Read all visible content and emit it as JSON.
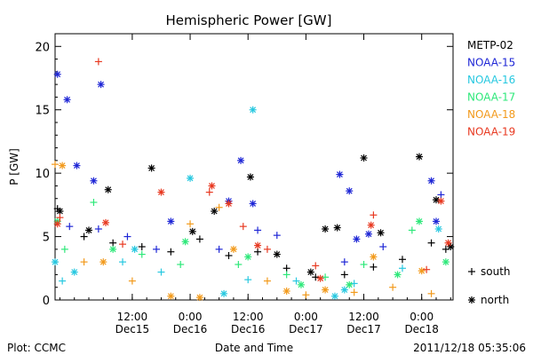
{
  "chart_data": {
    "type": "scatter",
    "title": "Hemispheric Power [GW]",
    "ylabel": "P [GW]",
    "xlabel": "Date and Time",
    "ylim": [
      0,
      21
    ],
    "xlim": [
      "2011-12-14T20:00",
      "2011-12-18T06:30"
    ],
    "yticks": [
      0,
      5,
      10,
      15,
      20
    ],
    "xticks": [
      {
        "t": "2011-12-15T12:00",
        "line1": "12:00",
        "line2": "Dec15"
      },
      {
        "t": "2011-12-16T00:00",
        "line1": "0:00",
        "line2": "Dec16"
      },
      {
        "t": "2011-12-16T12:00",
        "line1": "12:00",
        "line2": "Dec16"
      },
      {
        "t": "2011-12-17T00:00",
        "line1": "0:00",
        "line2": "Dec17"
      },
      {
        "t": "2011-12-17T12:00",
        "line1": "12:00",
        "line2": "Dec17"
      },
      {
        "t": "2011-12-18T00:00",
        "line1": "0:00",
        "line2": "Dec18"
      }
    ],
    "grid": false,
    "legend_placement": "right",
    "markers": {
      "south": "+",
      "north": "*",
      "south_label": "south",
      "north_label": "north"
    },
    "series": [
      {
        "name": "METP-02",
        "color": "#000000",
        "south": [
          [
            "2011-12-14T20:30",
            7.2
          ],
          [
            "2011-12-15T02:00",
            5.0
          ],
          [
            "2011-12-15T08:00",
            4.5
          ],
          [
            "2011-12-15T14:00",
            4.2
          ],
          [
            "2011-12-15T20:00",
            3.8
          ],
          [
            "2011-12-16T02:00",
            4.8
          ],
          [
            "2011-12-16T08:00",
            3.5
          ],
          [
            "2011-12-16T14:00",
            3.8
          ],
          [
            "2011-12-16T20:00",
            2.5
          ],
          [
            "2011-12-17T02:00",
            1.8
          ],
          [
            "2011-12-17T08:00",
            2.0
          ],
          [
            "2011-12-17T14:00",
            2.6
          ],
          [
            "2011-12-17T20:00",
            3.2
          ],
          [
            "2011-12-18T02:00",
            4.5
          ],
          [
            "2011-12-18T05:00",
            4.0
          ]
        ],
        "north": [
          [
            "2011-12-14T21:00",
            7.0
          ],
          [
            "2011-12-15T03:00",
            5.5
          ],
          [
            "2011-12-15T07:00",
            8.7
          ],
          [
            "2011-12-15T16:00",
            10.4
          ],
          [
            "2011-12-16T00:30",
            5.4
          ],
          [
            "2011-12-16T05:00",
            7.0
          ],
          [
            "2011-12-16T12:30",
            9.7
          ],
          [
            "2011-12-16T18:00",
            3.6
          ],
          [
            "2011-12-17T01:00",
            2.2
          ],
          [
            "2011-12-17T04:00",
            5.6
          ],
          [
            "2011-12-17T06:30",
            5.7
          ],
          [
            "2011-12-17T12:00",
            11.2
          ],
          [
            "2011-12-17T15:30",
            5.3
          ],
          [
            "2011-12-17T23:30",
            11.3
          ],
          [
            "2011-12-18T03:00",
            7.9
          ],
          [
            "2011-12-18T06:00",
            4.2
          ]
        ]
      },
      {
        "name": "NOAA-15",
        "color": "#1f27d6",
        "south": [
          [
            "2011-12-14T23:00",
            5.8
          ],
          [
            "2011-12-15T05:00",
            5.6
          ],
          [
            "2011-12-15T11:00",
            5.0
          ],
          [
            "2011-12-15T17:00",
            4.0
          ],
          [
            "2011-12-16T06:00",
            4.0
          ],
          [
            "2011-12-16T14:00",
            5.5
          ],
          [
            "2011-12-16T18:00",
            5.1
          ],
          [
            "2011-12-17T08:00",
            3.0
          ],
          [
            "2011-12-17T16:00",
            4.2
          ],
          [
            "2011-12-18T04:00",
            8.3
          ]
        ],
        "north": [
          [
            "2011-12-14T20:30",
            17.8
          ],
          [
            "2011-12-14T22:30",
            15.8
          ],
          [
            "2011-12-15T00:30",
            10.6
          ],
          [
            "2011-12-15T04:00",
            9.4
          ],
          [
            "2011-12-15T05:30",
            17.0
          ],
          [
            "2011-12-15T20:00",
            6.2
          ],
          [
            "2011-12-16T08:00",
            7.8
          ],
          [
            "2011-12-16T10:30",
            11.0
          ],
          [
            "2011-12-16T13:00",
            7.6
          ],
          [
            "2011-12-17T07:00",
            9.9
          ],
          [
            "2011-12-17T09:00",
            8.6
          ],
          [
            "2011-12-17T10:30",
            4.8
          ],
          [
            "2011-12-17T13:00",
            5.2
          ],
          [
            "2011-12-18T02:00",
            9.4
          ],
          [
            "2011-12-18T03:00",
            6.2
          ]
        ]
      },
      {
        "name": "NOAA-16",
        "color": "#27c8e0",
        "south": [
          [
            "2011-12-14T21:30",
            1.5
          ],
          [
            "2011-12-15T10:00",
            3.0
          ],
          [
            "2011-12-15T18:00",
            2.2
          ],
          [
            "2011-12-16T12:00",
            1.6
          ],
          [
            "2011-12-16T22:00",
            1.5
          ],
          [
            "2011-12-17T10:00",
            1.3
          ],
          [
            "2011-12-17T20:00",
            2.5
          ]
        ],
        "north": [
          [
            "2011-12-14T20:00",
            3.0
          ],
          [
            "2011-12-15T00:00",
            2.2
          ],
          [
            "2011-12-15T12:30",
            4.0
          ],
          [
            "2011-12-16T00:00",
            9.6
          ],
          [
            "2011-12-16T07:00",
            0.5
          ],
          [
            "2011-12-16T13:00",
            15.0
          ],
          [
            "2011-12-17T06:00",
            0.3
          ],
          [
            "2011-12-17T08:00",
            0.8
          ],
          [
            "2011-12-18T03:30",
            5.6
          ]
        ]
      },
      {
        "name": "NOAA-17",
        "color": "#2ee87a",
        "south": [
          [
            "2011-12-14T22:00",
            4.0
          ],
          [
            "2011-12-15T04:00",
            7.7
          ],
          [
            "2011-12-15T14:00",
            3.6
          ],
          [
            "2011-12-15T22:00",
            2.8
          ],
          [
            "2011-12-16T10:00",
            2.8
          ],
          [
            "2011-12-16T20:00",
            2.0
          ],
          [
            "2011-12-17T04:00",
            1.8
          ],
          [
            "2011-12-17T12:00",
            2.8
          ],
          [
            "2011-12-17T22:00",
            5.5
          ]
        ],
        "north": [
          [
            "2011-12-14T20:30",
            6.2
          ],
          [
            "2011-12-15T08:00",
            4.0
          ],
          [
            "2011-12-15T23:00",
            4.6
          ],
          [
            "2011-12-16T12:00",
            3.4
          ],
          [
            "2011-12-16T23:00",
            1.2
          ],
          [
            "2011-12-17T09:00",
            1.2
          ],
          [
            "2011-12-17T19:00",
            2.0
          ],
          [
            "2011-12-17T23:30",
            6.2
          ],
          [
            "2011-12-18T05:00",
            3.0
          ]
        ]
      },
      {
        "name": "NOAA-18",
        "color": "#f29a1c",
        "south": [
          [
            "2011-12-14T20:00",
            10.7
          ],
          [
            "2011-12-15T02:00",
            3.0
          ],
          [
            "2011-12-15T12:00",
            1.5
          ],
          [
            "2011-12-16T00:00",
            6.0
          ],
          [
            "2011-12-16T06:00",
            7.3
          ],
          [
            "2011-12-16T16:00",
            1.5
          ],
          [
            "2011-12-17T00:00",
            0.4
          ],
          [
            "2011-12-17T10:00",
            0.6
          ],
          [
            "2011-12-17T18:00",
            1.0
          ],
          [
            "2011-12-18T02:00",
            0.5
          ]
        ],
        "north": [
          [
            "2011-12-14T21:30",
            10.6
          ],
          [
            "2011-12-15T06:00",
            3.0
          ],
          [
            "2011-12-15T20:00",
            0.3
          ],
          [
            "2011-12-16T02:00",
            0.2
          ],
          [
            "2011-12-16T09:00",
            4.0
          ],
          [
            "2011-12-16T20:00",
            0.7
          ],
          [
            "2011-12-17T04:00",
            0.8
          ],
          [
            "2011-12-17T14:00",
            3.4
          ],
          [
            "2011-12-18T00:00",
            2.3
          ]
        ]
      },
      {
        "name": "NOAA-19",
        "color": "#e83a22",
        "south": [
          [
            "2011-12-14T21:00",
            6.5
          ],
          [
            "2011-12-15T05:00",
            18.8
          ],
          [
            "2011-12-15T10:00",
            4.4
          ],
          [
            "2011-12-16T04:00",
            8.5
          ],
          [
            "2011-12-16T11:00",
            5.8
          ],
          [
            "2011-12-16T16:00",
            4.0
          ],
          [
            "2011-12-17T02:00",
            2.7
          ],
          [
            "2011-12-17T14:00",
            6.7
          ],
          [
            "2011-12-18T01:00",
            2.4
          ]
        ],
        "north": [
          [
            "2011-12-14T20:30",
            6.0
          ],
          [
            "2011-12-15T06:30",
            6.1
          ],
          [
            "2011-12-15T18:00",
            8.5
          ],
          [
            "2011-12-16T04:30",
            9.0
          ],
          [
            "2011-12-16T08:00",
            7.6
          ],
          [
            "2011-12-16T14:00",
            4.3
          ],
          [
            "2011-12-17T03:00",
            1.7
          ],
          [
            "2011-12-17T13:30",
            5.9
          ],
          [
            "2011-12-18T04:00",
            7.8
          ],
          [
            "2011-12-18T05:30",
            4.5
          ]
        ]
      }
    ]
  },
  "footer": {
    "plot_credit": "Plot: CCMC",
    "timestamp": "2011/12/18 05:35:06"
  }
}
